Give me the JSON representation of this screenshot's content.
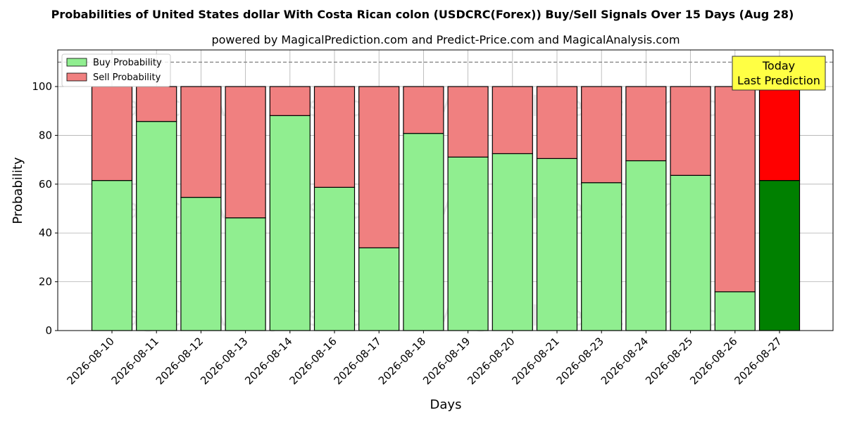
{
  "chart_data": {
    "type": "bar",
    "stacked": true,
    "title": "Probabilities of United States dollar With Costa Rican colon (USDCRC(Forex)) Buy/Sell Signals Over 15 Days (Aug 28)",
    "subtitle": "powered by MagicalPrediction.com and Predict-Price.com and MagicalAnalysis.com",
    "xlabel": "Days",
    "ylabel": "Probability",
    "ylim": [
      0,
      115
    ],
    "yticks": [
      0,
      20,
      40,
      60,
      80,
      100
    ],
    "reference_line": 110,
    "grid": true,
    "legend_position": "top-left",
    "categories": [
      "2026-08-10",
      "2026-08-11",
      "2026-08-12",
      "2026-08-13",
      "2026-08-14",
      "2026-08-16",
      "2026-08-17",
      "2026-08-18",
      "2026-08-19",
      "2026-08-20",
      "2026-08-21",
      "2026-08-23",
      "2026-08-24",
      "2026-08-25",
      "2026-08-26",
      "2026-08-27"
    ],
    "series": [
      {
        "name": "Buy Probability",
        "color": "#90ee90",
        "highlight_color": "#008000",
        "values": [
          61.5,
          85.7,
          54.6,
          46.2,
          88.1,
          58.7,
          33.9,
          80.8,
          71.1,
          72.5,
          70.5,
          60.6,
          69.6,
          63.6,
          15.9,
          61.5
        ]
      },
      {
        "name": "Sell Probability",
        "color": "#f08080",
        "highlight_color": "#ff0000",
        "values": [
          38.5,
          14.3,
          45.4,
          53.8,
          11.9,
          41.3,
          66.1,
          19.2,
          28.9,
          27.5,
          29.5,
          39.4,
          30.4,
          36.4,
          84.1,
          38.5
        ]
      }
    ],
    "annotation": {
      "lines": [
        "Today",
        "Last Prediction"
      ],
      "target_category": "2026-08-27",
      "background": "#ffff44"
    },
    "watermarks": [
      "MagicalAnalysis.com",
      "MagicalPrediction.com"
    ]
  }
}
